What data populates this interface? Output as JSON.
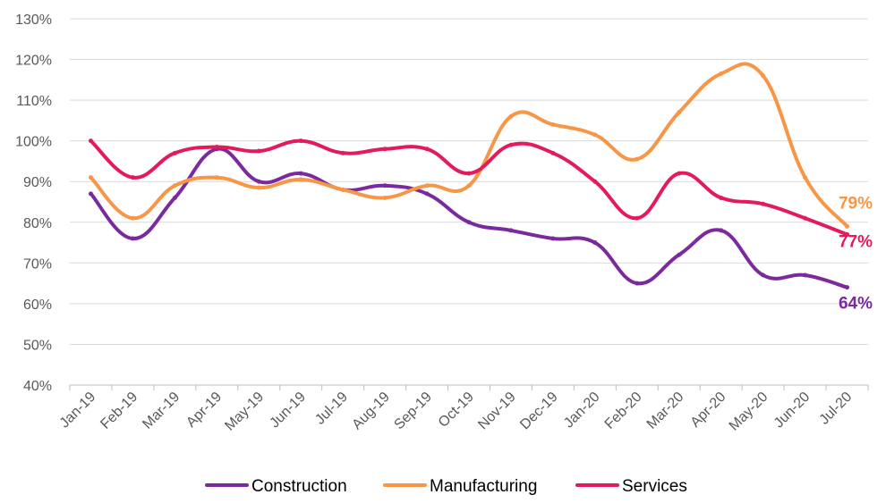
{
  "chart_data": {
    "type": "line",
    "title": "",
    "xlabel": "",
    "ylabel": "",
    "categories": [
      "Jan-19",
      "Feb-19",
      "Mar-19",
      "Apr-19",
      "May-19",
      "Jun-19",
      "Jul-19",
      "Aug-19",
      "Sep-19",
      "Oct-19",
      "Nov-19",
      "Dec-19",
      "Jan-20",
      "Feb-20",
      "Mar-20",
      "Apr-20",
      "May-20",
      "Jun-20",
      "Jul-20"
    ],
    "ylim": [
      0.4,
      1.3
    ],
    "yticks": [
      "40%",
      "50%",
      "60%",
      "70%",
      "80%",
      "90%",
      "100%",
      "110%",
      "120%",
      "130%"
    ],
    "grid": true,
    "legend_position": "bottom",
    "series": [
      {
        "name": "Construction",
        "color": "#7B2A9E",
        "values": [
          0.87,
          0.76,
          0.86,
          0.98,
          0.9,
          0.92,
          0.88,
          0.89,
          0.87,
          0.8,
          0.78,
          0.76,
          0.75,
          0.65,
          0.72,
          0.78,
          0.67,
          0.67,
          0.64
        ],
        "end_label": "64%"
      },
      {
        "name": "Manufacturing",
        "color": "#F79646",
        "values": [
          0.91,
          0.81,
          0.89,
          0.91,
          0.885,
          0.905,
          0.88,
          0.86,
          0.89,
          0.89,
          1.06,
          1.04,
          1.015,
          0.955,
          1.07,
          1.165,
          1.16,
          0.91,
          0.79
        ],
        "end_label": "79%"
      },
      {
        "name": "Services",
        "color": "#E31B5C",
        "values": [
          1.0,
          0.91,
          0.97,
          0.985,
          0.975,
          1.0,
          0.97,
          0.98,
          0.98,
          0.92,
          0.99,
          0.97,
          0.9,
          0.81,
          0.92,
          0.86,
          0.845,
          0.81,
          0.77
        ],
        "end_label": "77%"
      }
    ]
  }
}
